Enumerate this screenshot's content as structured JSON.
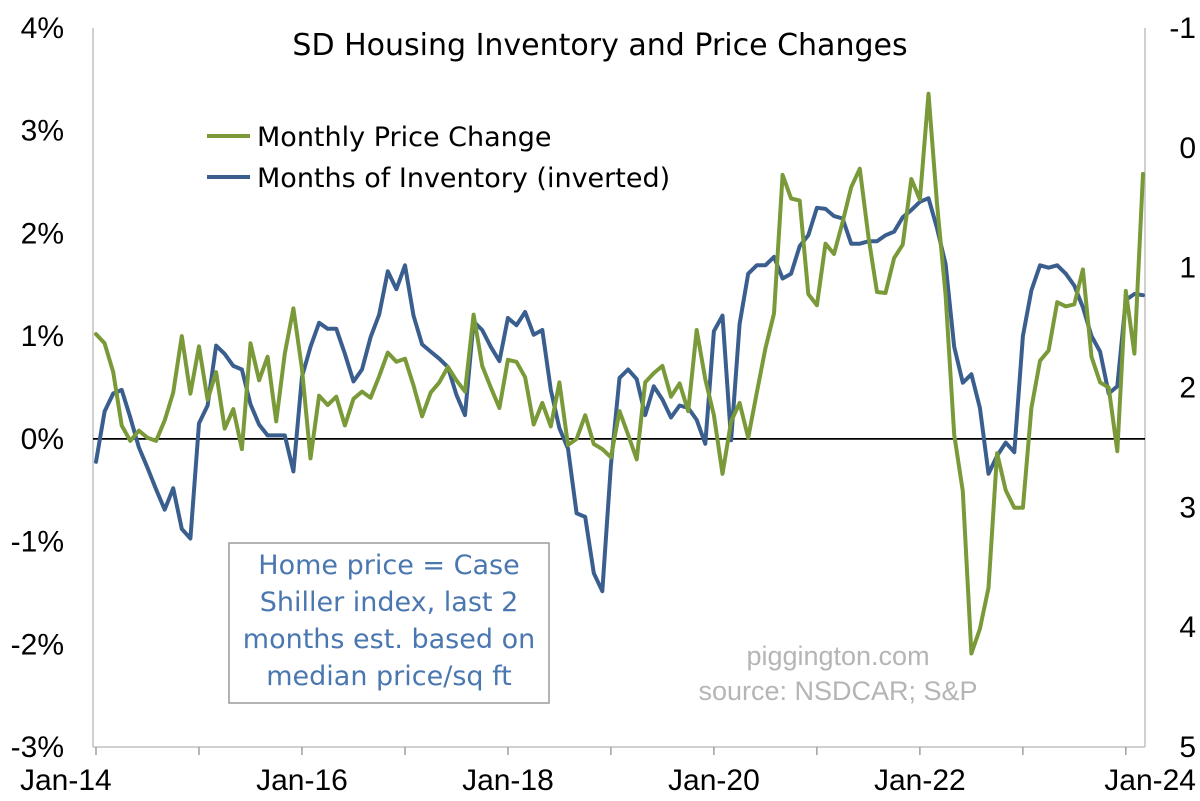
{
  "chart_data": {
    "type": "line",
    "title": "SD Housing Inventory and Price Changes",
    "x_tick_labels": [
      "Jan-14",
      "Jan-16",
      "Jan-18",
      "Jan-20",
      "Jan-22",
      "Jan-24"
    ],
    "x_start": "2014-01",
    "y_left": {
      "ticks": [
        "4%",
        "3%",
        "2%",
        "1%",
        "0%",
        "-1%",
        "-2%",
        "-3%"
      ],
      "range": [
        -3,
        4
      ]
    },
    "y_right": {
      "ticks": [
        "-1",
        "0",
        "1",
        "2",
        "3",
        "4",
        "5"
      ],
      "range": [
        -1,
        5
      ],
      "inverted": true
    },
    "zero_line": true,
    "grid": false,
    "legend_position": "top-left",
    "series": [
      {
        "name": "Monthly Price Change",
        "color": "#7a9a3a",
        "axis": "left",
        "values": [
          1.02,
          0.93,
          0.65,
          0.13,
          -0.02,
          0.08,
          0.01,
          -0.02,
          0.18,
          0.45,
          1.0,
          0.44,
          0.9,
          0.38,
          0.65,
          0.1,
          0.29,
          -0.1,
          0.93,
          0.57,
          0.8,
          0.17,
          0.83,
          1.27,
          0.68,
          -0.19,
          0.42,
          0.33,
          0.41,
          0.13,
          0.39,
          0.46,
          0.4,
          0.61,
          0.84,
          0.75,
          0.78,
          0.52,
          0.22,
          0.45,
          0.55,
          0.7,
          0.57,
          0.46,
          1.21,
          0.71,
          0.5,
          0.3,
          0.77,
          0.75,
          0.6,
          0.14,
          0.35,
          0.12,
          0.55,
          -0.06,
          0.0,
          0.23,
          -0.05,
          -0.1,
          -0.18,
          0.27,
          0.04,
          -0.2,
          0.55,
          0.64,
          0.71,
          0.41,
          0.54,
          0.27,
          1.06,
          0.58,
          0.23,
          -0.34,
          0.17,
          0.35,
          0.01,
          0.45,
          0.88,
          1.22,
          2.57,
          2.34,
          2.32,
          1.41,
          1.3,
          1.9,
          1.8,
          2.11,
          2.45,
          2.63,
          1.97,
          1.43,
          1.42,
          1.76,
          1.89,
          2.53,
          2.33,
          3.36,
          2.29,
          1.4,
          0.04,
          -0.51,
          -2.09,
          -1.85,
          -1.45,
          -0.14,
          -0.5,
          -0.67,
          -0.67,
          0.3,
          0.76,
          0.86,
          1.33,
          1.29,
          1.31,
          1.65,
          0.8,
          0.55,
          0.5,
          -0.12,
          1.44,
          0.83,
          2.58
        ]
      },
      {
        "name": "Months of Inventory (inverted)",
        "color": "#3a5f8e",
        "axis": "right",
        "values": [
          2.62,
          2.2,
          2.05,
          2.02,
          2.25,
          2.5,
          2.67,
          2.85,
          3.02,
          2.84,
          3.18,
          3.26,
          2.3,
          2.15,
          1.65,
          1.72,
          1.82,
          1.85,
          2.14,
          2.31,
          2.4,
          2.4,
          2.4,
          2.7,
          1.91,
          1.66,
          1.46,
          1.51,
          1.51,
          1.72,
          1.95,
          1.85,
          1.58,
          1.39,
          1.03,
          1.18,
          0.98,
          1.4,
          1.64,
          1.7,
          1.76,
          1.83,
          2.06,
          2.23,
          1.45,
          1.52,
          1.66,
          1.78,
          1.42,
          1.48,
          1.37,
          1.56,
          1.52,
          2.02,
          2.34,
          2.51,
          3.05,
          3.08,
          3.55,
          3.7,
          2.65,
          1.92,
          1.85,
          1.93,
          2.23,
          1.99,
          2.1,
          2.25,
          2.15,
          2.17,
          2.27,
          2.47,
          1.53,
          1.4,
          2.44,
          1.47,
          1.05,
          0.98,
          0.98,
          0.91,
          1.09,
          1.05,
          0.82,
          0.73,
          0.5,
          0.51,
          0.57,
          0.59,
          0.8,
          0.8,
          0.78,
          0.78,
          0.73,
          0.7,
          0.58,
          0.52,
          0.45,
          0.42,
          0.67,
          0.97,
          1.66,
          1.96,
          1.89,
          2.17,
          2.72,
          2.57,
          2.46,
          2.54,
          1.57,
          1.19,
          0.98,
          1.0,
          0.98,
          1.05,
          1.15,
          1.33,
          1.57,
          1.7,
          2.05,
          1.99,
          1.27,
          1.22,
          1.23
        ]
      }
    ]
  },
  "legend": {
    "items": [
      {
        "label": "Monthly Price Change",
        "color": "#7a9a3a"
      },
      {
        "label": "Months of Inventory (inverted)",
        "color": "#3a5f8e"
      }
    ]
  },
  "note": {
    "lines": [
      "Home price = Case",
      "Shiller index, last 2",
      "months est. based on",
      "median price/sq ft"
    ]
  },
  "watermark": {
    "lines": [
      "piggington.com",
      "source: NSDCAR; S&P"
    ]
  }
}
